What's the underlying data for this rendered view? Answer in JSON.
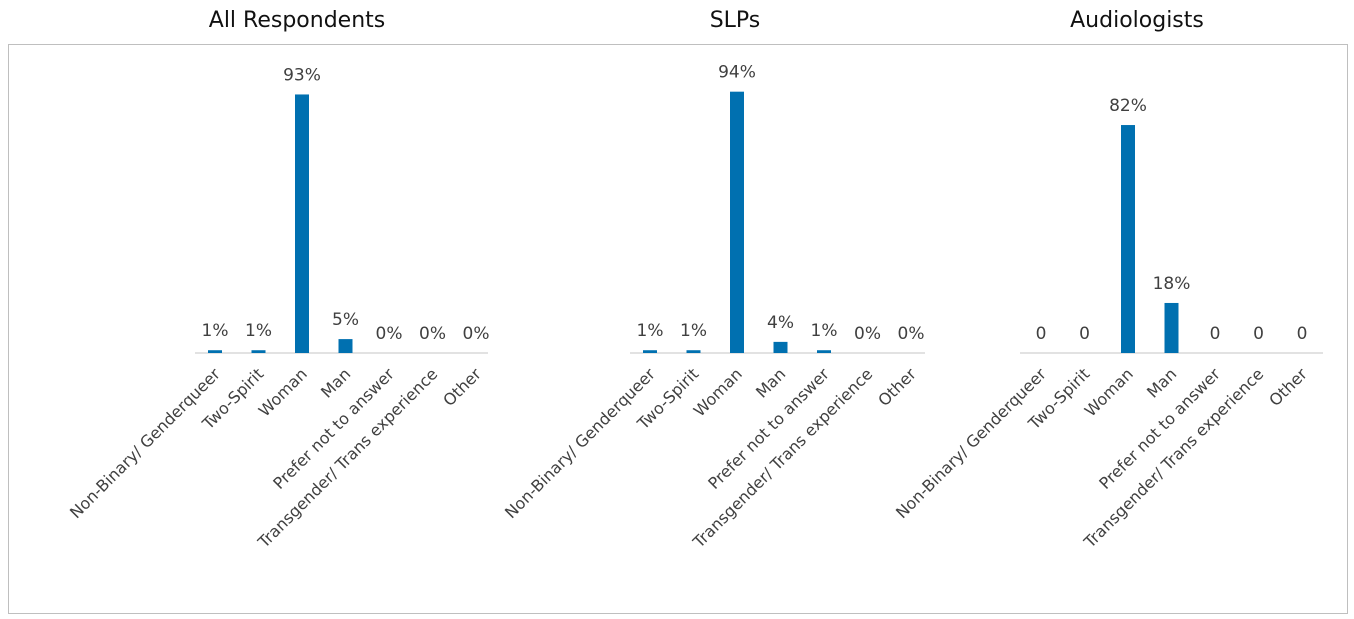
{
  "chart_data": [
    {
      "type": "bar",
      "title": "All Respondents",
      "categories": [
        "Non-Binary/ Genderqueer",
        "Two-Spirit",
        "Woman",
        "Man",
        "Prefer not to answer",
        "Transgender/ Trans experience",
        "Other"
      ],
      "values": [
        1,
        1,
        93,
        5,
        0,
        0,
        0
      ],
      "labels": [
        "1%",
        "1%",
        "93%",
        "5%",
        "0%",
        "0%",
        "0%"
      ],
      "color": "#0070b0"
    },
    {
      "type": "bar",
      "title": "SLPs",
      "categories": [
        "Non-Binary/ Genderqueer",
        "Two-Spirit",
        "Woman",
        "Man",
        "Prefer not to answer",
        "Transgender/ Trans experience",
        "Other"
      ],
      "values": [
        1,
        1,
        94,
        4,
        1,
        0,
        0
      ],
      "labels": [
        "1%",
        "1%",
        "94%",
        "4%",
        "1%",
        "0%",
        "0%"
      ],
      "color": "#0070b0"
    },
    {
      "type": "bar",
      "title": "Audiologists",
      "categories": [
        "Non-Binary/ Genderqueer",
        "Two-Spirit",
        "Woman",
        "Man",
        "Prefer not to answer",
        "Transgender/ Trans experience",
        "Other"
      ],
      "values": [
        0,
        0,
        82,
        18,
        0,
        0,
        0
      ],
      "labels": [
        "0",
        "0",
        "82%",
        "18%",
        "0",
        "0",
        "0"
      ],
      "color": "#0070b0"
    }
  ]
}
